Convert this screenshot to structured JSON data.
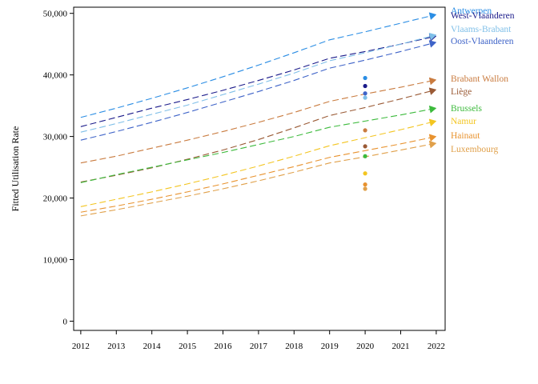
{
  "chart_data": {
    "type": "line",
    "ylabel": "Fitted Utilisation Rate",
    "xlabel": "",
    "x": [
      2012,
      2013,
      2014,
      2015,
      2016,
      2017,
      2018,
      2019,
      2020,
      2021,
      2022
    ],
    "xlim": [
      2011.8,
      2022.25
    ],
    "ylim": [
      -1500,
      51000
    ],
    "yticks": [
      0,
      10000,
      20000,
      30000,
      40000,
      50000
    ],
    "ytick_labels": [
      "0",
      "10,000",
      "20,000",
      "30,000",
      "40,000",
      "50,000"
    ],
    "xtick_labels": [
      "2012",
      "2013",
      "2014",
      "2015",
      "2016",
      "2017",
      "2018",
      "2019",
      "2020",
      "2021",
      "2022"
    ],
    "grid": false,
    "line_style": "dashed",
    "legend": "labels at line ends, right",
    "series": [
      {
        "name": "Antwerpen",
        "color": "#2a8de4",
        "values": [
          33100,
          34600,
          36200,
          37900,
          39700,
          41600,
          43600,
          45700,
          47000,
          48400,
          49800
        ],
        "point_2020": 39500
      },
      {
        "name": "West-Vlaanderen",
        "color": "#1a1a8a",
        "values": [
          31600,
          33100,
          34600,
          36000,
          37500,
          39100,
          40800,
          42700,
          43800,
          45000,
          46300
        ],
        "point_2020": 38200
      },
      {
        "name": "Vlaams-Brabant",
        "color": "#7fbfe8",
        "values": [
          30700,
          32100,
          33600,
          35100,
          36800,
          38500,
          40300,
          42300,
          43600,
          45000,
          46500
        ],
        "point_2020": 36300
      },
      {
        "name": "Oost-Vlaanderen",
        "color": "#3e63c8",
        "values": [
          29400,
          30800,
          32300,
          33900,
          35600,
          37300,
          39100,
          41100,
          42400,
          43800,
          45300
        ],
        "point_2020": 37000
      },
      {
        "name": "Brabant Wallon",
        "color": "#c97b3f",
        "values": [
          25700,
          26800,
          28100,
          29400,
          30800,
          32300,
          33900,
          35700,
          36900,
          38000,
          39200
        ],
        "point_2020": 31000
      },
      {
        "name": "Liège",
        "color": "#9a5a35",
        "values": [
          22600,
          23700,
          24900,
          26300,
          27800,
          29500,
          31400,
          33400,
          34700,
          36100,
          37600
        ],
        "point_2020": 28400
      },
      {
        "name": "Brussels",
        "color": "#3cba3c",
        "values": [
          22500,
          23800,
          25000,
          26200,
          27400,
          28700,
          30000,
          31500,
          32500,
          33500,
          34600
        ],
        "point_2020": 26800
      },
      {
        "name": "Namur",
        "color": "#f3c520",
        "values": [
          18600,
          19800,
          21000,
          22300,
          23700,
          25200,
          26800,
          28500,
          29800,
          31100,
          32500
        ],
        "point_2020": 24000
      },
      {
        "name": "Hainaut",
        "color": "#e8922e",
        "values": [
          17700,
          18700,
          19800,
          21000,
          22300,
          23700,
          25100,
          26600,
          27700,
          28800,
          30000
        ],
        "point_2020": 22200
      },
      {
        "name": "Luxembourg",
        "color": "#e0a04a",
        "values": [
          17100,
          18100,
          19200,
          20300,
          21500,
          22800,
          24200,
          25700,
          26700,
          27800,
          28900
        ],
        "point_2020": 21500
      }
    ]
  }
}
